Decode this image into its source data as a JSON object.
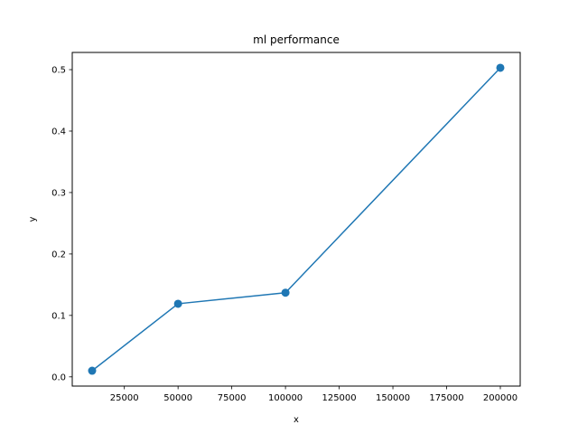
{
  "chart_data": {
    "type": "line",
    "title": "ml performance",
    "xlabel": "x",
    "ylabel": "y",
    "xlim": [
      750,
      209250
    ],
    "ylim": [
      -0.015,
      0.528
    ],
    "x_ticks": [
      25000,
      50000,
      75000,
      100000,
      125000,
      150000,
      175000,
      200000
    ],
    "y_ticks": [
      0.0,
      0.1,
      0.2,
      0.3,
      0.4,
      0.5
    ],
    "x_tick_labels": [
      "25000",
      "50000",
      "75000",
      "100000",
      "125000",
      "150000",
      "175000",
      "200000"
    ],
    "y_tick_labels": [
      "0.0",
      "0.1",
      "0.2",
      "0.3",
      "0.4",
      "0.5"
    ],
    "grid": false,
    "series": [
      {
        "color": "#1f77b4",
        "marker": "circle",
        "x": [
          10000,
          50000,
          100000,
          200000
        ],
        "y": [
          0.01,
          0.119,
          0.137,
          0.503
        ]
      }
    ]
  }
}
